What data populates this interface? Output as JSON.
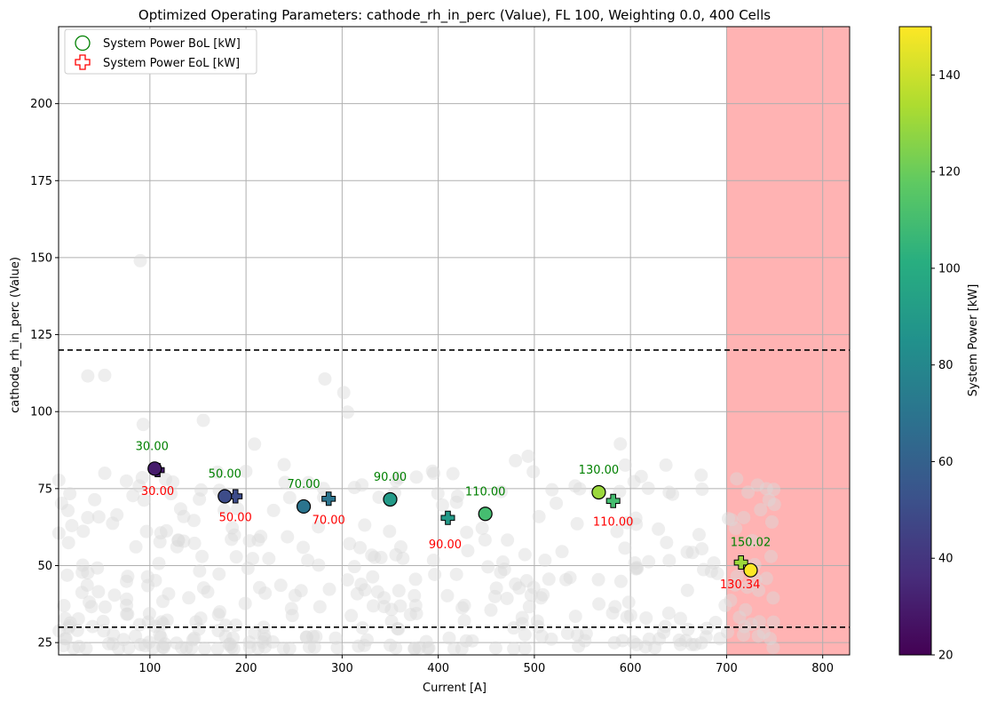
{
  "chart_data": {
    "type": "scatter",
    "title": "Optimized Operating Parameters: cathode_rh_in_perc (Value), FL 100, Weighting 0.0, 400 Cells",
    "xlabel": "Current [A]",
    "ylabel": "cathode_rh_in_perc (Value)",
    "xlim": [
      5,
      828
    ],
    "ylim": [
      21,
      225
    ],
    "x_ticks": [
      100,
      200,
      300,
      400,
      500,
      600,
      700,
      800
    ],
    "y_ticks": [
      25,
      50,
      75,
      100,
      125,
      150,
      175,
      200
    ],
    "grid": true,
    "legend_position": "top-left",
    "legend": [
      {
        "label": "System Power BoL [kW]",
        "marker": "circle",
        "color": "#008000"
      },
      {
        "label": "System Power EoL [kW]",
        "marker": "plus",
        "color": "#ff0000"
      }
    ],
    "reference_lines": [
      {
        "axis": "y",
        "value": 120,
        "style": "dashed",
        "color": "#000000"
      },
      {
        "axis": "y",
        "value": 30,
        "style": "dashed",
        "color": "#000000"
      }
    ],
    "shaded_region": {
      "axis": "x",
      "from": 700,
      "to": 828,
      "color": "#ffb3b3"
    },
    "colorbar": {
      "label": "System Power [kW]",
      "colormap": "viridis",
      "min": 20,
      "max": 150,
      "ticks": [
        20,
        40,
        60,
        80,
        100,
        120,
        140
      ]
    },
    "series": [
      {
        "name": "System Power BoL [kW]",
        "marker": "circle",
        "points": [
          {
            "x": 105,
            "y": 81.5,
            "value": 30.0,
            "label": "30.00"
          },
          {
            "x": 178,
            "y": 72.5,
            "value": 50.0,
            "label": "50.00"
          },
          {
            "x": 260,
            "y": 69.2,
            "value": 70.0,
            "label": "70.00"
          },
          {
            "x": 350,
            "y": 71.5,
            "value": 90.0,
            "label": "90.00"
          },
          {
            "x": 449,
            "y": 66.8,
            "value": 110.0,
            "label": "110.00"
          },
          {
            "x": 567,
            "y": 73.8,
            "value": 130.0,
            "label": "130.00"
          },
          {
            "x": 725,
            "y": 48.5,
            "value": 150.02,
            "label": "150.02"
          }
        ]
      },
      {
        "name": "System Power EoL [kW]",
        "marker": "plus",
        "points": [
          {
            "x": 108,
            "y": 81.0,
            "value": 30.0,
            "label": "30.00"
          },
          {
            "x": 189,
            "y": 72.5,
            "value": 50.0,
            "label": "50.00"
          },
          {
            "x": 286,
            "y": 71.7,
            "value": 70.0,
            "label": "70.00"
          },
          {
            "x": 410,
            "y": 65.5,
            "value": 90.0,
            "label": "90.00"
          },
          {
            "x": 582,
            "y": 71.0,
            "value": 110.0,
            "label": "110.00"
          },
          {
            "x": 715,
            "y": 51.0,
            "value": 130.34,
            "label": "130.34"
          }
        ]
      }
    ],
    "background_cloud": {
      "x_range": [
        5,
        752
      ],
      "y_range": [
        23,
        126
      ],
      "count": 420,
      "color": "#d9d9d9"
    }
  }
}
